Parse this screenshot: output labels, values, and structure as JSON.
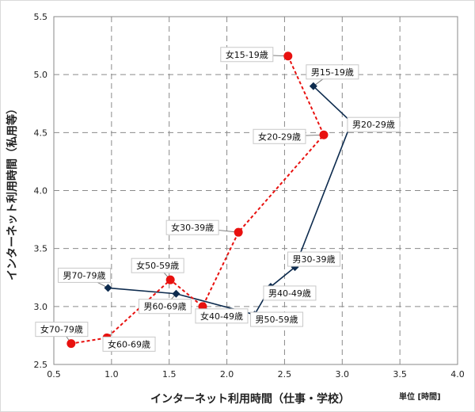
{
  "chart_data": {
    "type": "scatter",
    "title": "",
    "xlabel": "インターネット利用時間（仕事・学校）",
    "ylabel": "インターネット利用時間（私用等）",
    "unit_label": "単位 [時間]",
    "xlim": [
      0.5,
      4.0
    ],
    "ylim": [
      2.5,
      5.5
    ],
    "x_ticks": [
      "0.5",
      "1.0",
      "1.5",
      "2.0",
      "2.5",
      "3.0",
      "3.5",
      "4.0"
    ],
    "y_ticks": [
      "2.5",
      "3.0",
      "3.5",
      "4.0",
      "4.5",
      "5.0",
      "5.5"
    ],
    "grid": true,
    "series": [
      {
        "color": "#0d2b4e",
        "marker": "diamond",
        "line": "solid",
        "points": [
          {
            "label": "男15-19歳",
            "x": 2.75,
            "y": 4.9
          },
          {
            "label": "男20-29歳",
            "x": 3.08,
            "y": 4.59
          },
          {
            "label": "男30-39歳",
            "x": 2.59,
            "y": 3.34
          },
          {
            "label": "男40-49歳",
            "x": 2.38,
            "y": 3.17
          },
          {
            "label": "男50-59歳",
            "x": 2.24,
            "y": 2.93
          },
          {
            "label": "男60-69歳",
            "x": 1.56,
            "y": 3.11
          },
          {
            "label": "男70-79歳",
            "x": 0.97,
            "y": 3.16
          }
        ]
      },
      {
        "color": "#e8110f",
        "marker": "circle",
        "line": "dashed",
        "points": [
          {
            "label": "女15-19歳",
            "x": 2.53,
            "y": 5.16
          },
          {
            "label": "女20-29歳",
            "x": 2.84,
            "y": 4.48
          },
          {
            "label": "女30-39歳",
            "x": 2.1,
            "y": 3.64
          },
          {
            "label": "女40-49歳",
            "x": 1.79,
            "y": 3.0
          },
          {
            "label": "女50-59歳",
            "x": 1.51,
            "y": 3.23
          },
          {
            "label": "女60-69歳",
            "x": 0.96,
            "y": 2.73
          },
          {
            "label": "女70-79歳",
            "x": 0.65,
            "y": 2.68
          }
        ]
      }
    ]
  }
}
